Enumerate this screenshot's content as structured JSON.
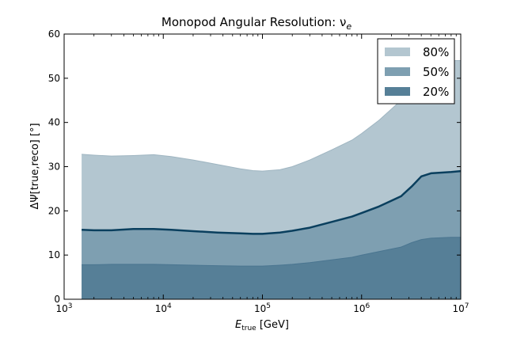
{
  "chart_data": {
    "type": "area",
    "title": "Monopod Angular Resolution: ν",
    "title_subscript": "e",
    "xlabel": "E",
    "xlabel_subscript": "true",
    "xlabel_unit": " [GeV]",
    "ylabel": "ΔΨ[true,reco] [°]",
    "xscale": "log",
    "xlim": [
      1000,
      10000000
    ],
    "ylim": [
      0,
      60
    ],
    "x_ticks": [
      {
        "value": 1000,
        "base": "10",
        "exp": "3"
      },
      {
        "value": 10000,
        "base": "10",
        "exp": "4"
      },
      {
        "value": 100000,
        "base": "10",
        "exp": "5"
      },
      {
        "value": 1000000,
        "base": "10",
        "exp": "6"
      },
      {
        "value": 10000000,
        "base": "10",
        "exp": "7"
      }
    ],
    "y_ticks": [
      "0",
      "10",
      "20",
      "30",
      "40",
      "50",
      "60"
    ],
    "legend_position": "top-right",
    "colors": {
      "band_80": "#b3c6d0",
      "band_50": "#7e9fb1",
      "band_20": "#567f97",
      "median_line": "#0a3f5e"
    },
    "x": [
      1500,
      2000,
      3000,
      5000,
      8000,
      12000,
      20000,
      35000,
      60000,
      80000,
      100000,
      150000,
      200000,
      300000,
      500000,
      800000,
      1000000,
      1500000,
      2500000,
      3200000,
      4000000,
      5000000,
      8000000,
      10000000
    ],
    "series": [
      {
        "name": "80%",
        "values": [
          32.8,
          32.6,
          32.4,
          32.5,
          32.7,
          32.3,
          31.5,
          30.5,
          29.5,
          29.1,
          29.0,
          29.3,
          30.0,
          31.5,
          33.8,
          36.0,
          37.5,
          40.5,
          45.0,
          47.5,
          50.0,
          52.5,
          54.0,
          54.0
        ]
      },
      {
        "name": "50%",
        "values": [
          15.7,
          15.6,
          15.6,
          15.9,
          15.9,
          15.7,
          15.4,
          15.1,
          14.9,
          14.8,
          14.8,
          15.1,
          15.5,
          16.2,
          17.5,
          18.7,
          19.5,
          21.0,
          23.3,
          25.5,
          27.8,
          28.5,
          28.8,
          29.0
        ]
      },
      {
        "name": "20%",
        "values": [
          7.8,
          7.8,
          7.9,
          7.9,
          7.9,
          7.8,
          7.7,
          7.6,
          7.5,
          7.5,
          7.5,
          7.7,
          7.9,
          8.3,
          8.9,
          9.5,
          10.0,
          10.8,
          11.8,
          12.8,
          13.5,
          13.8,
          14.0,
          14.0
        ]
      }
    ]
  }
}
